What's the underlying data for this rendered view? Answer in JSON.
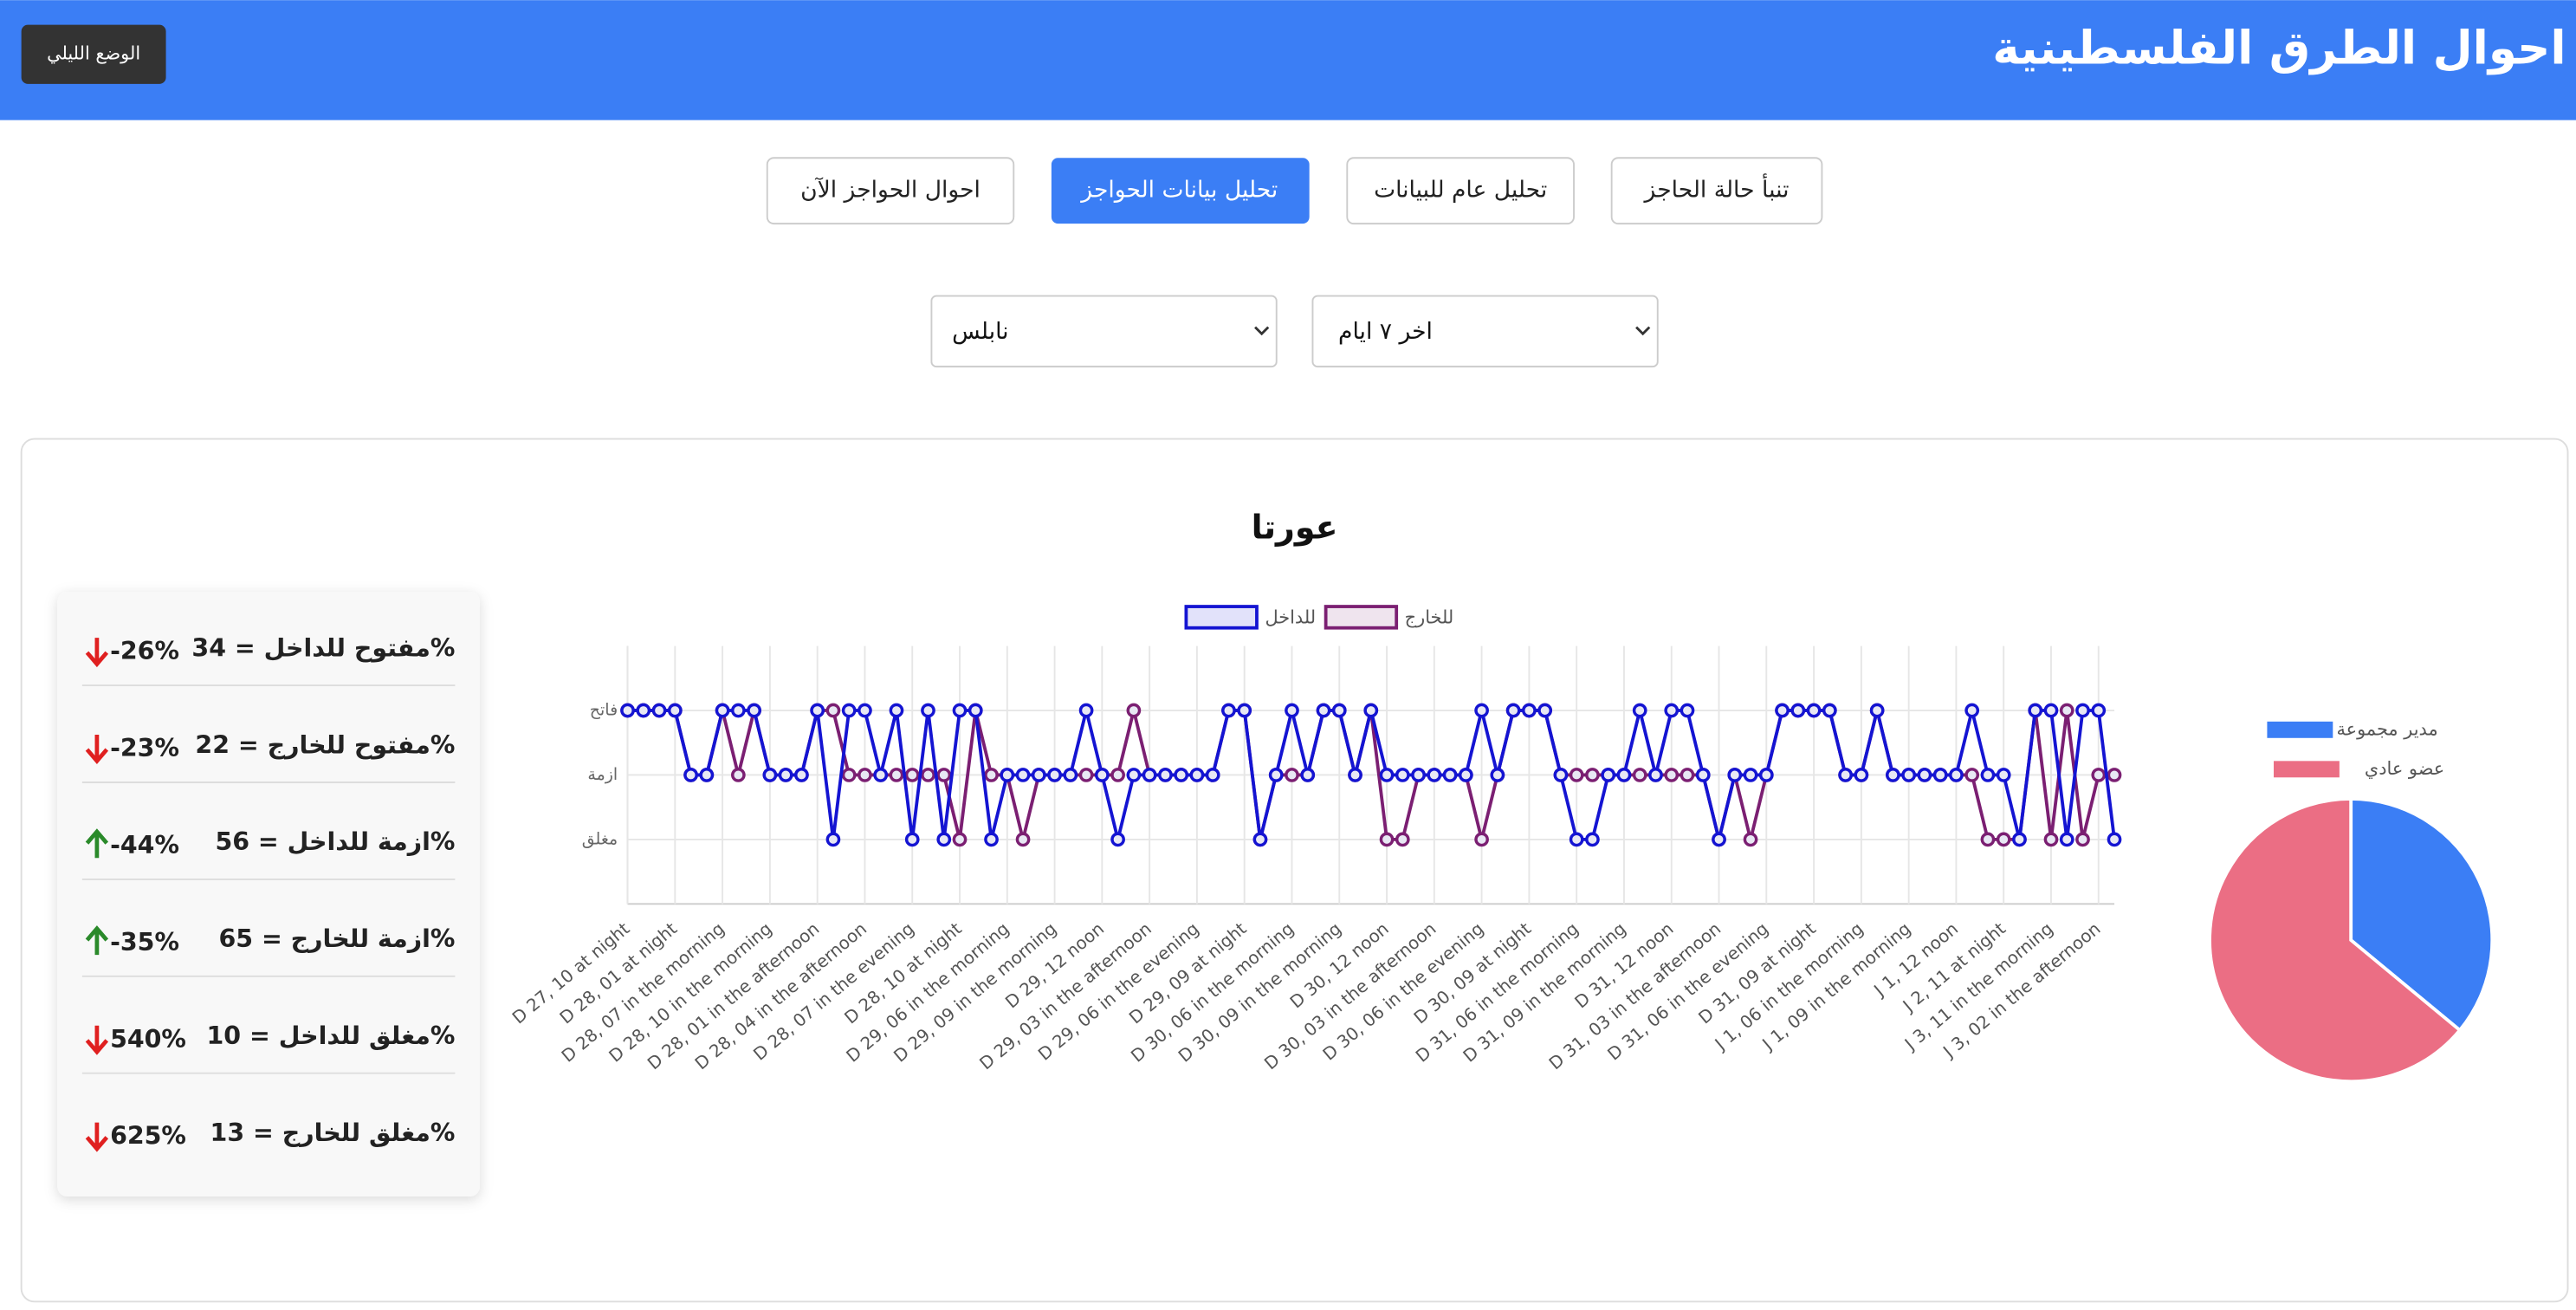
{
  "header": {
    "title": "احوال الطرق الفلسطينية",
    "night_mode": "الوضع الليلي"
  },
  "nav": [
    "تنبأ حالة الحاجز",
    "تحليل عام للبيانات",
    "تحليل بيانات الحواجز",
    "احوال الحواجز الآن"
  ],
  "filters": [
    "اخر ٧ ايام",
    "نابلس"
  ],
  "stats": [
    {
      "label": "مفتوح للداخل = 34%",
      "change": "-26%"
    },
    {
      "label": "مفتوح للخارج = 22%",
      "change": "-23%"
    },
    {
      "label": "ازمة للداخل = 56%",
      "change": "-44%"
    },
    {
      "label": "ازمة للخارج = 65%",
      "change": "-35%"
    },
    {
      "label": "مغلق للداخل = 10%",
      "change": "540%"
    },
    {
      "label": "مغلق للخارج = 13%",
      "change": "625%"
    }
  ],
  "chart_data": [
    {
      "type": "line",
      "title": "عورتا",
      "categories": [
        "D 27, 10 at night",
        null,
        null,
        "D 28, 01 at night",
        null,
        null,
        "D 28, 07 in the morning",
        null,
        null,
        "D 28, 10 in the morning",
        null,
        null,
        "D 28, 01 in the afternoon",
        null,
        null,
        "D 28, 04 in the afternoon",
        null,
        null,
        "D 28, 07 in the evening",
        null,
        null,
        "D 28, 10 at night",
        null,
        null,
        "D 29, 06 in the morning",
        null,
        null,
        "D 29, 09 in the morning",
        null,
        null,
        "D 29, 12 noon",
        null,
        null,
        "D 29, 03 in the afternoon",
        null,
        null,
        "D 29, 06 in the evening",
        null,
        null,
        "D 29, 09 at night",
        null,
        null,
        "D 30, 06 in the morning",
        null,
        null,
        "D 30, 09 in the morning",
        null,
        null,
        "D 30, 12 noon",
        null,
        null,
        "D 30, 03 in the afternoon",
        null,
        null,
        "D 30, 06 in the evening",
        null,
        null,
        "D 30, 09 at night",
        null,
        null,
        "D 31, 06 in the morning",
        null,
        null,
        "D 31, 09 in the morning",
        null,
        null,
        "D 31, 12 noon",
        null,
        null,
        "D 31, 03 in the afternoon",
        null,
        null,
        "D 31, 06 in the evening",
        null,
        null,
        "D 31, 09 at night",
        null,
        null,
        "J 1, 06 in the morning",
        null,
        null,
        "J 1, 09 in the morning",
        null,
        null,
        "J 1, 12 noon",
        null,
        null,
        "J 2, 11 at night",
        null,
        null,
        "J 3, 11 in the morning",
        null,
        null,
        "J 3, 02 in the afternoon",
        null
      ],
      "series": [
        {
          "name": "للداخل",
          "color": "#1414d2",
          "values": [
            2,
            2,
            2,
            2,
            1,
            1,
            2,
            2,
            2,
            1,
            1,
            1,
            2,
            0,
            2,
            2,
            1,
            2,
            0,
            2,
            0,
            2,
            2,
            0,
            1,
            1,
            1,
            1,
            1,
            2,
            1,
            0,
            1,
            1,
            1,
            1,
            1,
            1,
            2,
            2,
            0,
            1,
            2,
            1,
            2,
            2,
            1,
            2,
            1,
            1,
            1,
            1,
            1,
            1,
            2,
            1,
            2,
            2,
            2,
            1,
            0,
            0,
            1,
            1,
            2,
            1,
            2,
            2,
            1,
            0,
            1,
            1,
            1,
            2,
            2,
            2,
            2,
            1,
            1,
            2,
            1,
            1,
            1,
            1,
            1,
            2,
            1,
            1,
            0,
            2,
            2,
            0,
            2,
            2,
            0
          ]
        },
        {
          "name": "للخارج",
          "color": "#7b1f72",
          "values": [
            2,
            2,
            2,
            2,
            1,
            1,
            2,
            1,
            2,
            1,
            1,
            1,
            2,
            2,
            1,
            1,
            1,
            1,
            1,
            1,
            1,
            0,
            2,
            1,
            1,
            0,
            1,
            1,
            1,
            1,
            1,
            1,
            2,
            1,
            1,
            1,
            1,
            1,
            2,
            2,
            0,
            1,
            1,
            1,
            2,
            2,
            1,
            2,
            0,
            0,
            1,
            1,
            1,
            1,
            0,
            1,
            2,
            2,
            2,
            1,
            1,
            1,
            1,
            1,
            1,
            1,
            1,
            1,
            1,
            0,
            1,
            0,
            1,
            2,
            2,
            2,
            2,
            1,
            1,
            2,
            1,
            1,
            1,
            1,
            1,
            1,
            0,
            0,
            0,
            2,
            0,
            2,
            0,
            1,
            1
          ]
        }
      ],
      "ylim": [
        -1,
        3
      ],
      "yticks": [
        {
          "value": 0,
          "label": "مغلق"
        },
        {
          "value": 1,
          "label": "ازمة"
        },
        {
          "value": 2,
          "label": "فاتح"
        }
      ],
      "grid": true
    },
    {
      "type": "pie",
      "categories": [
        "مدير مجموعة",
        "عضو عادي"
      ],
      "values": [
        36,
        64
      ],
      "colors": [
        "#3b7ef5",
        "#eb6e84"
      ]
    }
  ]
}
